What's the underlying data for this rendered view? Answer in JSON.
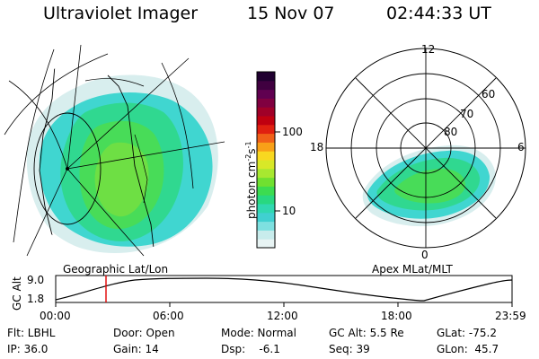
{
  "header": {
    "instrument": "Ultraviolet Imager",
    "date": "15 Nov 07",
    "time": "02:44:33 UT"
  },
  "left_panel": {
    "caption": "Geographic Lat/Lon"
  },
  "right_panel": {
    "caption": "Apex MLat/MLT",
    "mlt_labels": [
      "12",
      "18",
      "6",
      "0"
    ],
    "mlat_labels": [
      "80",
      "70",
      "60"
    ]
  },
  "colorbar": {
    "unit": "photon cm",
    "unit_exp1": "-2",
    "unit_mid": "s",
    "unit_exp2": "-1",
    "ticks": [
      "100",
      "10"
    ],
    "colors": [
      "#e8f4f4",
      "#c8ecec",
      "#7ee0e0",
      "#40d0d0",
      "#30d8b0",
      "#28d880",
      "#3cdc50",
      "#70e030",
      "#a8e830",
      "#d8e828",
      "#f8d820",
      "#f8a018",
      "#f06018",
      "#e02010",
      "#c00010",
      "#a00028",
      "#800040",
      "#600050",
      "#400040",
      "#200030"
    ]
  },
  "altitude_strip": {
    "ylabel": "GC Alt",
    "y_top": "9.0",
    "y_bottom": "1.8",
    "time_ticks": [
      "00:00",
      "06:00",
      "12:00",
      "18:00",
      "23:59"
    ]
  },
  "info": {
    "row1": {
      "filter": "Flt: LBHL",
      "door": "Door: Open",
      "mode": "Mode: Normal",
      "gc_alt": "GC Alt: 5.5 Re",
      "glat": "GLat: -75.2"
    },
    "row2": {
      "ip": "IP: 36.0",
      "gain": "Gain: 14",
      "dsp": "Dsp:    -6.1",
      "seq": "Seq: 39",
      "glon": "GLon:  45.7"
    }
  }
}
